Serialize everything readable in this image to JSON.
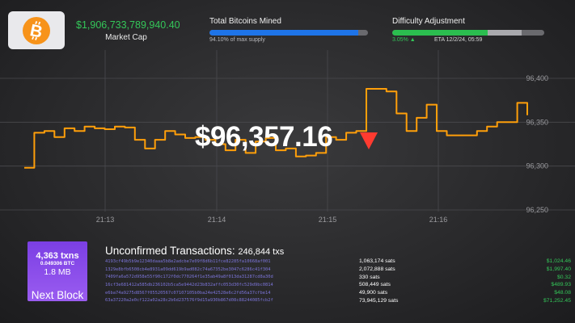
{
  "header": {
    "logo_icon": "bitcoin-icon",
    "market_cap_value": "$1,906,733,789,940.40",
    "market_cap_label": "Market Cap",
    "mined": {
      "title": "Total Bitcoins Mined",
      "subtitle": "94.10% of max supply",
      "fraction": 0.941
    },
    "difficulty": {
      "title": "Difficulty Adjustment",
      "change": "3.05% ▲",
      "eta": "ETA 12/2/24, 05:59",
      "progress_fraction": 0.63,
      "estimate_fraction": 0.85
    }
  },
  "price": {
    "value": "$96,357.16",
    "direction_icon": "down-triangle-icon",
    "direction_color": "#ff3b30"
  },
  "chart_data": {
    "type": "line",
    "line_color": "#ff9f0a",
    "x_ticks": [
      "21:13",
      "21:14",
      "21:15",
      "21:16"
    ],
    "y_ticks": [
      "96,400",
      "96,350",
      "96,300",
      "96,250"
    ],
    "ylim": [
      96250,
      96400
    ],
    "grid": true,
    "x": [
      0,
      0.02,
      0.04,
      0.06,
      0.08,
      0.1,
      0.12,
      0.14,
      0.16,
      0.18,
      0.2,
      0.22,
      0.24,
      0.26,
      0.28,
      0.3,
      0.32,
      0.34,
      0.36,
      0.38,
      0.4,
      0.42,
      0.44,
      0.46,
      0.48,
      0.5,
      0.52,
      0.54,
      0.56,
      0.58,
      0.6,
      0.62,
      0.64,
      0.66,
      0.68,
      0.7,
      0.72,
      0.74,
      0.76,
      0.78,
      0.8,
      0.82,
      0.84,
      0.86,
      0.88,
      0.9,
      0.92,
      0.94,
      0.96,
      0.98,
      1.0
    ],
    "values": [
      96298,
      96338,
      96340,
      96333,
      96343,
      96340,
      96345,
      96343,
      96342,
      96345,
      96344,
      96330,
      96320,
      96330,
      96340,
      96336,
      96332,
      96333,
      96330,
      96325,
      96318,
      96330,
      96315,
      96328,
      96332,
      96318,
      96320,
      96311,
      96312,
      96315,
      96333,
      96330,
      96338,
      96340,
      96388,
      96388,
      96385,
      96360,
      96340,
      96355,
      96370,
      96340,
      96335,
      96335,
      96335,
      96340,
      96345,
      96350,
      96350,
      96372,
      96358
    ]
  },
  "next_block": {
    "txns": "4,363 txns",
    "btc": "0.049306 BTC",
    "size": "1.8 MB",
    "label": "Next Block"
  },
  "unconfirmed": {
    "title": "Unconfirmed Transactions:",
    "count": "246,844 txs",
    "rows": [
      {
        "hash": "4193cf49b5b9e12340daaa5b8e2adcbe7e09f8d6b11fce82285fa10668af001",
        "sats": "1,063,174 sats",
        "usd": "$1,024.46"
      },
      {
        "hash": "1329e8bfb6508cb4e8931a09dd619b9ad082c74a67352be3047c6286c41f304",
        "sats": "2,072,888 sats",
        "usd": "$1,997.40"
      },
      {
        "hash": "7409fa6a572d958e55f90c172f0dc770264f1e35ab49a8f013da31287cd8a30d",
        "sats": "330 sats",
        "usd": "$0.32"
      },
      {
        "hash": "16cf3e681412a585db236102b5ca5e9442d23b832affc053d30fc529d9bc0814",
        "sats": "508,449 sats",
        "usd": "$489.93"
      },
      {
        "hash": "e6ba74a9275d8567f05520567c07107105b0ba24e42528e6c2fd56a37cfbe14",
        "sats": "49,900 sats",
        "usd": "$48.08"
      },
      {
        "hash": "63a37220a2e0cf122a02a28c2b6d237576f9d15a930b867d08c88244085fcb2f",
        "sats": "73,945,129 sats",
        "usd": "$71,252.45"
      }
    ]
  }
}
